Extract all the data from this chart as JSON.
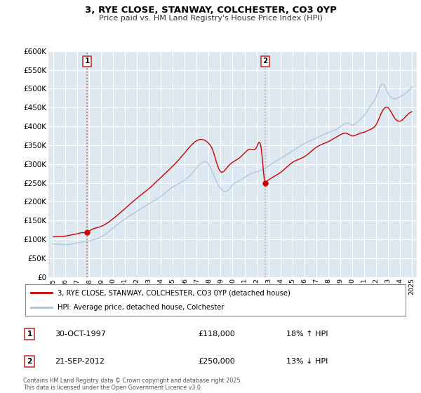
{
  "title": "3, RYE CLOSE, STANWAY, COLCHESTER, CO3 0YP",
  "subtitle": "Price paid vs. HM Land Registry's House Price Index (HPI)",
  "legend_label1": "3, RYE CLOSE, STANWAY, COLCHESTER, CO3 0YP (detached house)",
  "legend_label2": "HPI: Average price, detached house, Colchester",
  "table_row1": [
    "1",
    "30-OCT-1997",
    "£118,000",
    "18% ↑ HPI"
  ],
  "table_row2": [
    "2",
    "21-SEP-2012",
    "£250,000",
    "13% ↓ HPI"
  ],
  "footer": "Contains HM Land Registry data © Crown copyright and database right 2025.\nThis data is licensed under the Open Government Licence v3.0.",
  "sale1_year": 1997.83,
  "sale1_price": 118000,
  "sale2_year": 2012.72,
  "sale2_price": 250000,
  "vline1_year": 1997.83,
  "vline2_year": 2012.72,
  "hpi_color": "#aac4e0",
  "price_color": "#cc0000",
  "vline1_color": "#dd3333",
  "vline2_color": "#cc88aa",
  "plot_bg_color": "#dde8f0",
  "ylim": [
    0,
    600000
  ],
  "xlabel_years": [
    1995,
    1996,
    1997,
    1998,
    1999,
    2000,
    2001,
    2002,
    2003,
    2004,
    2005,
    2006,
    2007,
    2008,
    2009,
    2010,
    2011,
    2012,
    2013,
    2014,
    2015,
    2016,
    2017,
    2018,
    2019,
    2020,
    2021,
    2022,
    2023,
    2024,
    2025
  ]
}
